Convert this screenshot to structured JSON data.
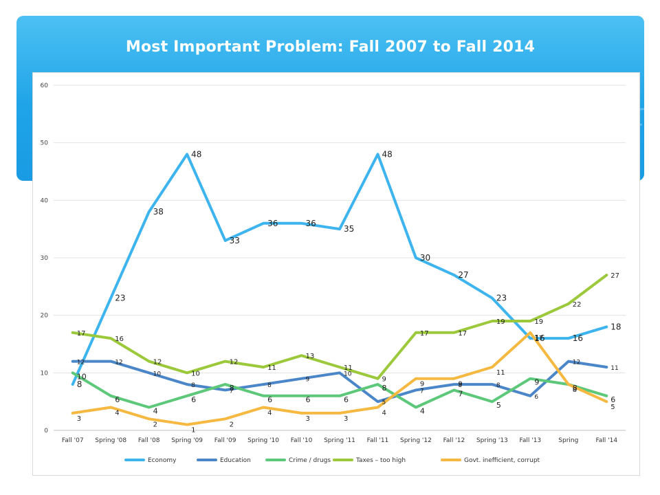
{
  "slide": {
    "title": "Most Important Problem: Fall 2007 to Fall 2014",
    "accent_color": "#1fa4e8"
  },
  "chart_data": {
    "type": "line",
    "title": "",
    "xlabel": "",
    "ylabel": "",
    "ylim": [
      0,
      60
    ],
    "yticks": [
      0,
      10,
      20,
      30,
      40,
      50,
      60
    ],
    "grid": true,
    "legend_position": "bottom",
    "categories": [
      "Fall '07",
      "Spring '08",
      "Fall '08",
      "Spring '09",
      "Fall '09",
      "Spring '10",
      "Fall '10",
      "Spring '11",
      "Fall '11",
      "Spring '12",
      "Fall '12",
      "Spring '13",
      "Fall '13",
      "Spring",
      "Fall '14"
    ],
    "series": [
      {
        "name": "Economy",
        "color": "#3db4ee",
        "values": [
          8,
          23,
          38,
          48,
          33,
          36,
          36,
          35,
          48,
          30,
          27,
          23,
          16,
          16,
          18
        ]
      },
      {
        "name": "Education",
        "color": "#4a86c8",
        "values": [
          12,
          12,
          10,
          8,
          7,
          8,
          9,
          10,
          5,
          7,
          8,
          8,
          6,
          12,
          11
        ]
      },
      {
        "name": "Crime / drugs",
        "color": "#5dc87a",
        "values": [
          10,
          6,
          4,
          6,
          8,
          6,
          6,
          6,
          8,
          4,
          7,
          5,
          9,
          8,
          6
        ]
      },
      {
        "name": "Taxes – too high",
        "color": "#9cc93b",
        "values": [
          17,
          16,
          12,
          10,
          12,
          11,
          13,
          11,
          9,
          17,
          17,
          19,
          19,
          22,
          27
        ]
      },
      {
        "name": "Govt. inefficient, corrupt",
        "color": "#f5b942",
        "values": [
          3,
          4,
          2,
          1,
          2,
          4,
          3,
          3,
          4,
          9,
          9,
          11,
          17,
          8,
          5
        ]
      }
    ]
  }
}
